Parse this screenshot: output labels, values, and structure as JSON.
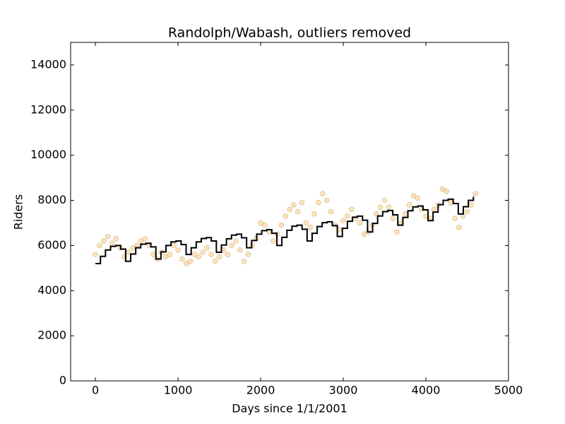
{
  "chart_data": {
    "type": "scatter",
    "title": "Randolph/Wabash, outliers removed",
    "x_label": "Days since 1/1/2001",
    "y_label": "Riders",
    "xlim": [
      -300,
      5000
    ],
    "ylim": [
      0,
      15000
    ],
    "xticks": [
      0,
      1000,
      2000,
      3000,
      4000,
      5000
    ],
    "yticks": [
      0,
      2000,
      4000,
      6000,
      8000,
      10000,
      12000,
      14000
    ],
    "grid": false,
    "series": [
      {
        "type": "scatter",
        "color": "#f0a020",
        "edge_color": "#a06a10",
        "alpha": 0.3,
        "x": [
          0,
          50,
          100,
          150,
          200,
          250,
          300,
          350,
          400,
          450,
          500,
          550,
          600,
          650,
          700,
          750,
          800,
          850,
          900,
          950,
          1000,
          1050,
          1100,
          1150,
          1200,
          1250,
          1300,
          1350,
          1400,
          1450,
          1500,
          1550,
          1600,
          1650,
          1700,
          1750,
          1800,
          1850,
          1900,
          1950,
          2000,
          2050,
          2100,
          2150,
          2200,
          2250,
          2300,
          2350,
          2400,
          2450,
          2500,
          2550,
          2600,
          2650,
          2700,
          2750,
          2800,
          2850,
          2900,
          2950,
          3000,
          3050,
          3100,
          3150,
          3200,
          3250,
          3300,
          3350,
          3400,
          3450,
          3500,
          3550,
          3600,
          3650,
          3700,
          3750,
          3800,
          3850,
          3900,
          3950,
          4000,
          4050,
          4100,
          4150,
          4200,
          4250,
          4300,
          4350,
          4400,
          4450,
          4500,
          4550,
          4600
        ],
        "values": [
          5600,
          6000,
          6200,
          6400,
          6100,
          6300,
          5900,
          5500,
          5700,
          5900,
          6000,
          6200,
          6300,
          6000,
          5600,
          5400,
          5700,
          5500,
          5600,
          6000,
          5800,
          5400,
          5200,
          5300,
          5600,
          5500,
          5700,
          5900,
          5600,
          5300,
          5500,
          5800,
          5600,
          6000,
          6200,
          5800,
          5300,
          5600,
          6000,
          6300,
          7000,
          6900,
          6600,
          6200,
          6500,
          6900,
          7300,
          7600,
          7800,
          7500,
          7900,
          7000,
          6800,
          7400,
          7900,
          8300,
          8000,
          7500,
          6900,
          6700,
          7100,
          7300,
          7600,
          7200,
          7000,
          6500,
          6600,
          6900,
          7400,
          7700,
          8000,
          7700,
          7200,
          6600,
          7000,
          7400,
          7800,
          8200,
          8100,
          7600,
          7300,
          7200,
          7600,
          7800,
          8500,
          8400,
          7900,
          7200,
          6800,
          7300,
          7500,
          7800,
          8300
        ]
      },
      {
        "type": "line",
        "drawstyle": "steps-post",
        "color": "#000000",
        "x": [
          0,
          61,
          122,
          183,
          244,
          305,
          366,
          427,
          488,
          549,
          610,
          671,
          732,
          793,
          854,
          915,
          976,
          1037,
          1098,
          1159,
          1220,
          1281,
          1342,
          1403,
          1464,
          1525,
          1586,
          1647,
          1708,
          1769,
          1830,
          1891,
          1952,
          2013,
          2074,
          2135,
          2196,
          2257,
          2318,
          2379,
          2440,
          2501,
          2562,
          2623,
          2684,
          2745,
          2806,
          2867,
          2928,
          2989,
          3050,
          3111,
          3172,
          3233,
          3294,
          3355,
          3416,
          3477,
          3538,
          3599,
          3660,
          3721,
          3782,
          3843,
          3904,
          3965,
          4026,
          4087,
          4148,
          4209,
          4270,
          4331,
          4392,
          4453,
          4514,
          4575
        ],
        "values": [
          5200,
          5520,
          5800,
          5960,
          6000,
          5840,
          5300,
          5620,
          5900,
          6060,
          6100,
          5940,
          5400,
          5720,
          6000,
          6160,
          6200,
          6040,
          5600,
          5900,
          6160,
          6310,
          6350,
          6200,
          5700,
          6020,
          6300,
          6460,
          6500,
          6340,
          5900,
          6220,
          6500,
          6660,
          6700,
          6540,
          6000,
          6360,
          6675,
          6855,
          6900,
          6720,
          6200,
          6540,
          6840,
          7010,
          7050,
          6880,
          6400,
          6760,
          7075,
          7255,
          7300,
          7120,
          6600,
          6980,
          7310,
          7500,
          7550,
          7360,
          6900,
          7240,
          7540,
          7710,
          7750,
          7580,
          7100,
          7480,
          7810,
          8000,
          8050,
          7860,
          7400,
          7720,
          8000,
          8160
        ]
      }
    ]
  }
}
